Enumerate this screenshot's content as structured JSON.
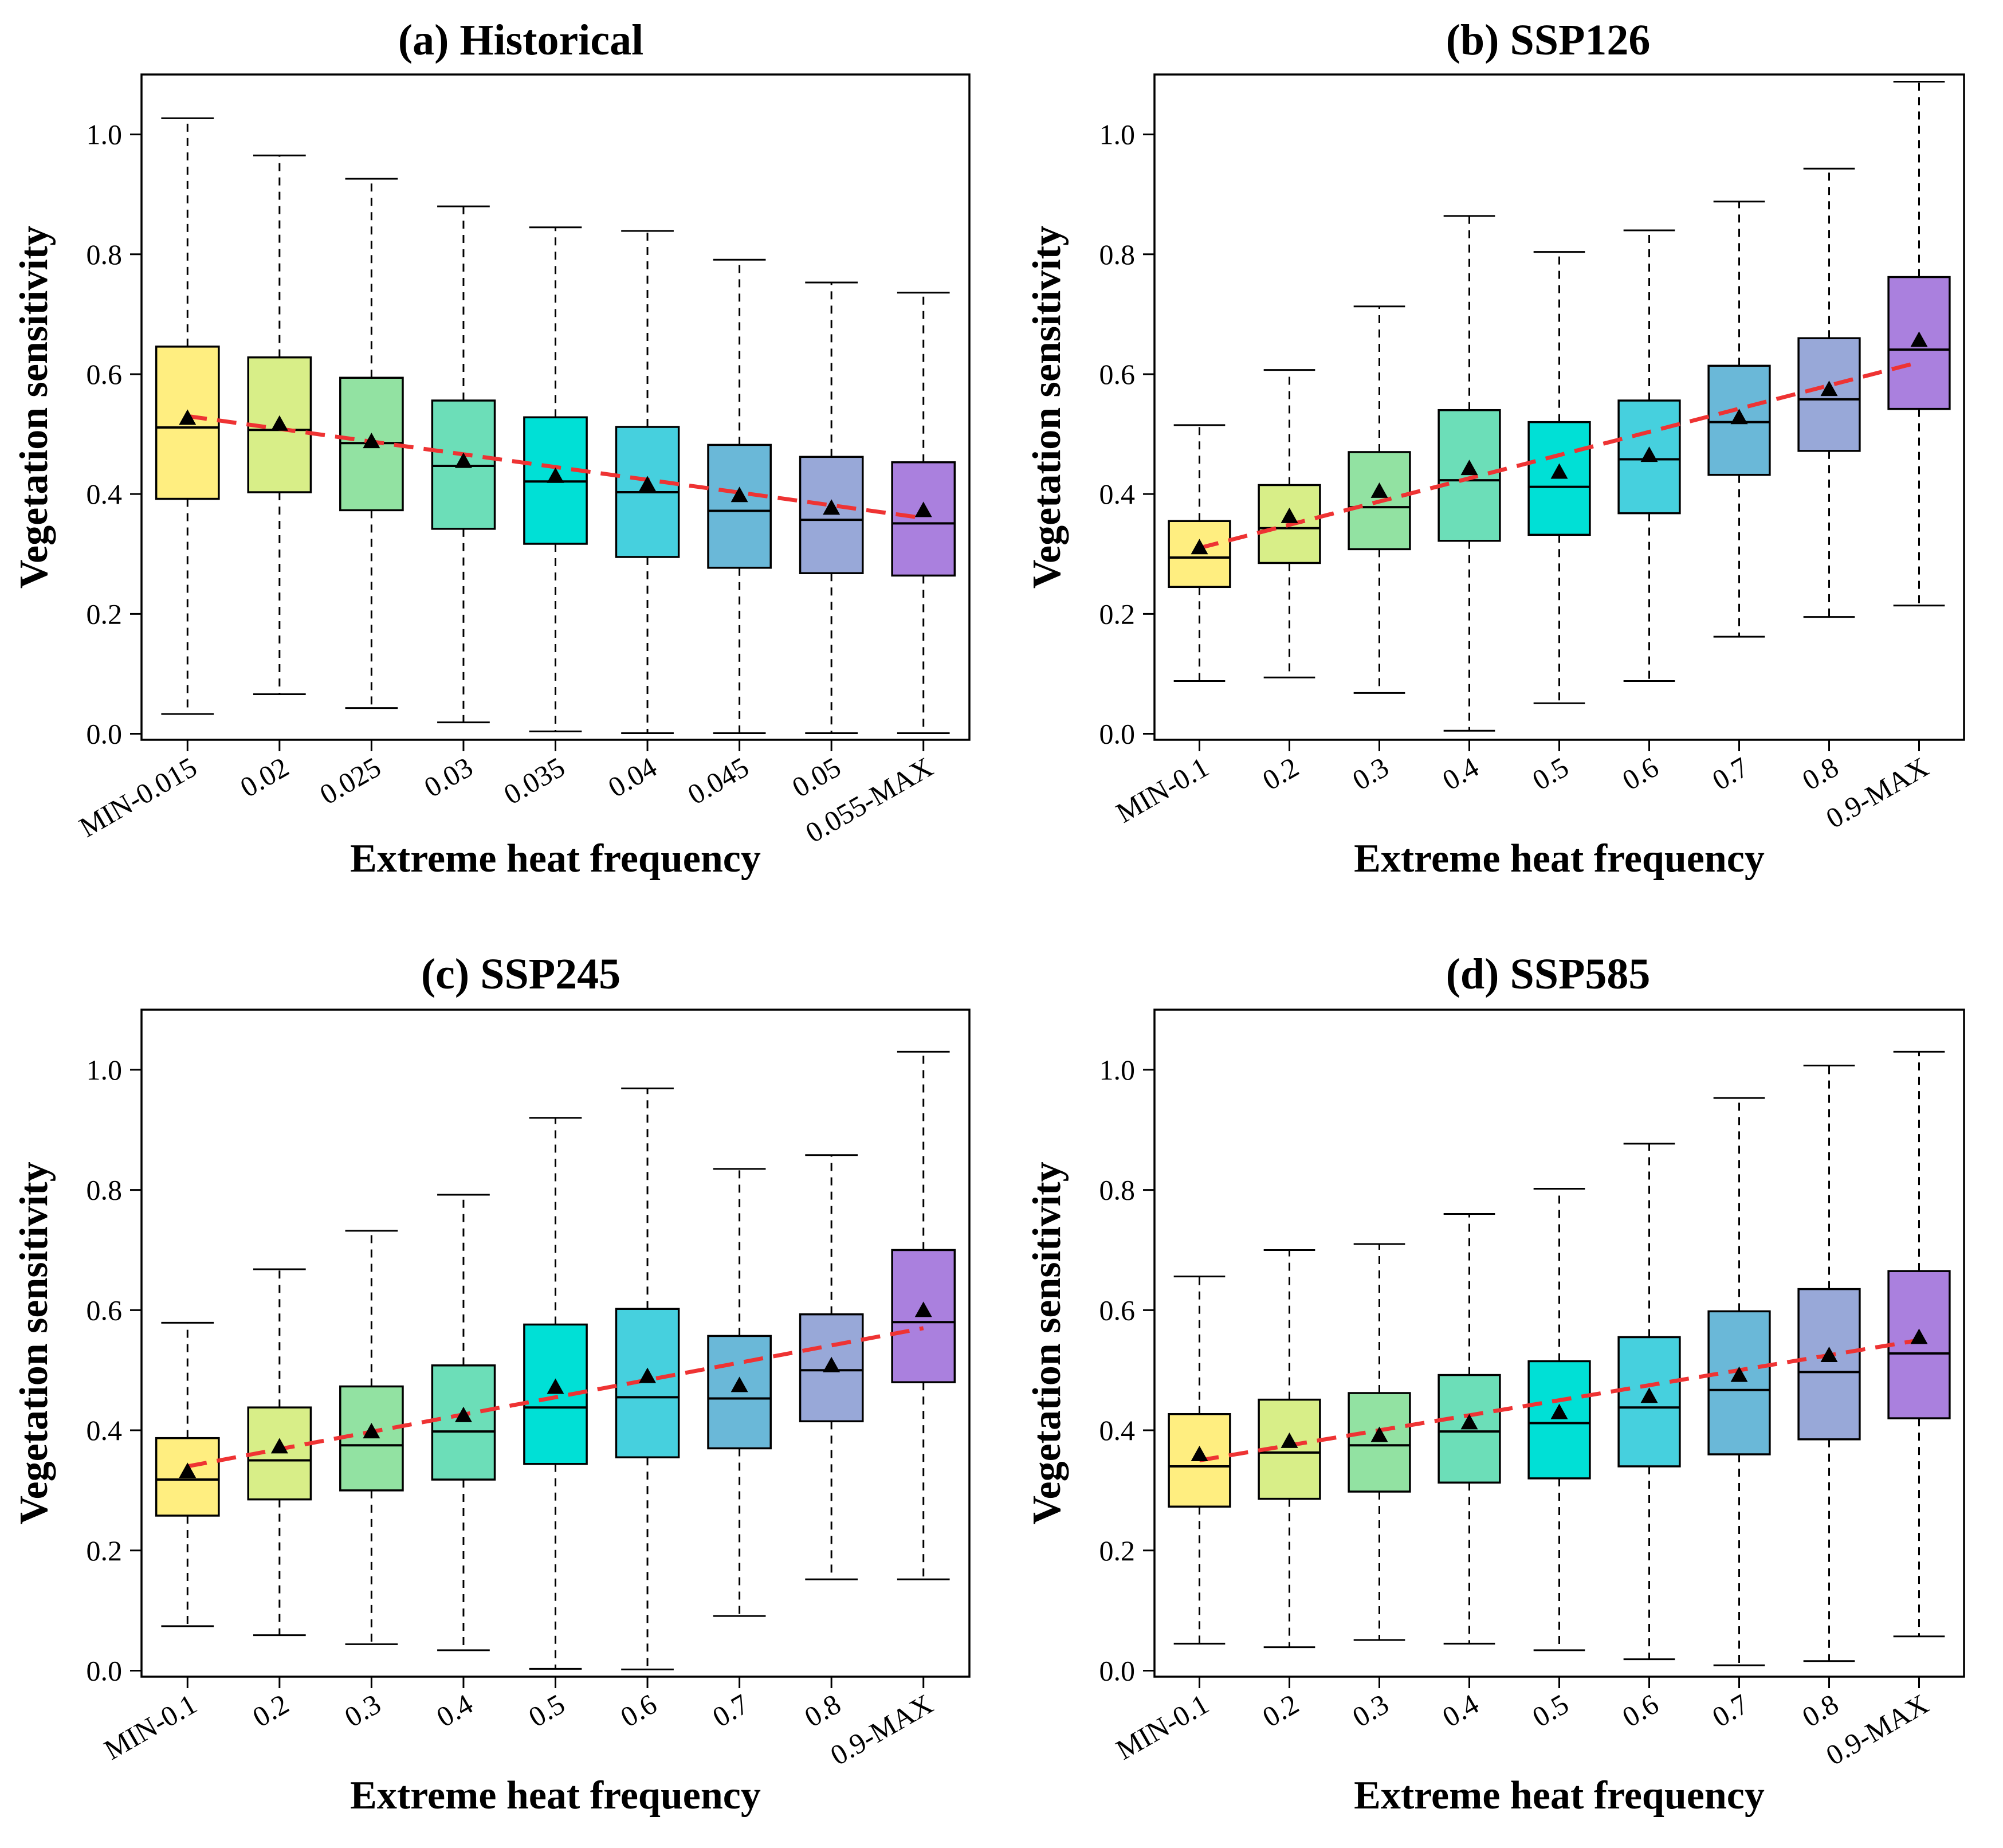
{
  "chart_data": [
    {
      "type": "box",
      "panel": "(a)",
      "title": "Historical",
      "xlabel": "Extreme heat frequency",
      "ylabel": "Vegetation sensitivity",
      "ylim": [
        -0.01,
        1.1
      ],
      "yticks": [
        "0.0",
        "0.2",
        "0.4",
        "0.6",
        "0.8",
        "1.0"
      ],
      "categories": [
        "MIN-0.015",
        "0.02",
        "0.025",
        "0.03",
        "0.035",
        "0.04",
        "0.045",
        "0.05",
        "0.055-MAX"
      ],
      "whisker_low": [
        0.033,
        0.066,
        0.043,
        0.019,
        0.004,
        0.001,
        0.001,
        0.001,
        0.001
      ],
      "q1": [
        0.392,
        0.403,
        0.373,
        0.342,
        0.317,
        0.295,
        0.277,
        0.268,
        0.264
      ],
      "median": [
        0.511,
        0.507,
        0.485,
        0.447,
        0.421,
        0.403,
        0.372,
        0.357,
        0.351
      ],
      "q3": [
        0.646,
        0.628,
        0.594,
        0.556,
        0.528,
        0.512,
        0.482,
        0.462,
        0.453
      ],
      "whisker_high": [
        1.027,
        0.965,
        0.926,
        0.88,
        0.845,
        0.839,
        0.791,
        0.753,
        0.736
      ],
      "mean": [
        0.527,
        0.517,
        0.488,
        0.455,
        0.43,
        0.416,
        0.398,
        0.377,
        0.373
      ],
      "trend": [
        0.53,
        0.36
      ]
    },
    {
      "type": "box",
      "panel": "(b)",
      "title": "SSP126",
      "xlabel": "Extreme heat frequency",
      "ylabel": "Vegetation sensitivity",
      "ylim": [
        -0.01,
        1.1
      ],
      "yticks": [
        "0.0",
        "0.2",
        "0.4",
        "0.6",
        "0.8",
        "1.0"
      ],
      "categories": [
        "MIN-0.1",
        "0.2",
        "0.3",
        "0.4",
        "0.5",
        "0.6",
        "0.7",
        "0.8",
        "0.9-MAX"
      ],
      "whisker_low": [
        0.088,
        0.094,
        0.068,
        0.005,
        0.051,
        0.088,
        0.162,
        0.195,
        0.214
      ],
      "q1": [
        0.245,
        0.285,
        0.308,
        0.322,
        0.332,
        0.368,
        0.432,
        0.472,
        0.542
      ],
      "median": [
        0.294,
        0.343,
        0.378,
        0.423,
        0.412,
        0.458,
        0.52,
        0.558,
        0.641
      ],
      "q3": [
        0.355,
        0.415,
        0.47,
        0.54,
        0.52,
        0.556,
        0.614,
        0.66,
        0.762
      ],
      "whisker_high": [
        0.515,
        0.607,
        0.713,
        0.864,
        0.804,
        0.84,
        0.888,
        0.943,
        1.088
      ],
      "mean": [
        0.311,
        0.363,
        0.405,
        0.443,
        0.437,
        0.465,
        0.528,
        0.575,
        0.657
      ],
      "trend": [
        0.31,
        0.62
      ]
    },
    {
      "type": "box",
      "panel": "(c)",
      "title": "SSP245",
      "xlabel": "Extreme heat frequency",
      "ylabel": "Vegetation sensitivity",
      "ylim": [
        -0.01,
        1.1
      ],
      "yticks": [
        "0.0",
        "0.2",
        "0.4",
        "0.6",
        "0.8",
        "1.0"
      ],
      "categories": [
        "MIN-0.1",
        "0.2",
        "0.3",
        "0.4",
        "0.5",
        "0.6",
        "0.7",
        "0.8",
        "0.9-MAX"
      ],
      "whisker_low": [
        0.074,
        0.059,
        0.044,
        0.034,
        0.003,
        0.002,
        0.091,
        0.152,
        0.152
      ],
      "q1": [
        0.258,
        0.285,
        0.3,
        0.318,
        0.344,
        0.355,
        0.37,
        0.415,
        0.48
      ],
      "median": [
        0.318,
        0.35,
        0.375,
        0.398,
        0.438,
        0.455,
        0.453,
        0.5,
        0.58
      ],
      "q3": [
        0.387,
        0.438,
        0.473,
        0.508,
        0.576,
        0.602,
        0.557,
        0.593,
        0.7
      ],
      "whisker_high": [
        0.579,
        0.668,
        0.732,
        0.792,
        0.92,
        0.969,
        0.835,
        0.858,
        1.03
      ],
      "mean": [
        0.332,
        0.373,
        0.398,
        0.425,
        0.472,
        0.49,
        0.475,
        0.508,
        0.6
      ],
      "trend": [
        0.34,
        0.57
      ]
    },
    {
      "type": "box",
      "panel": "(d)",
      "title": "SSP585",
      "xlabel": "Extreme heat frequency",
      "ylabel": "Vegetation sensitivity",
      "ylim": [
        -0.01,
        1.1
      ],
      "yticks": [
        "0.0",
        "0.2",
        "0.4",
        "0.6",
        "0.8",
        "1.0"
      ],
      "categories": [
        "MIN-0.1",
        "0.2",
        "0.3",
        "0.4",
        "0.5",
        "0.6",
        "0.7",
        "0.8",
        "0.9-MAX"
      ],
      "whisker_low": [
        0.045,
        0.039,
        0.051,
        0.045,
        0.034,
        0.019,
        0.009,
        0.016,
        0.057
      ],
      "q1": [
        0.273,
        0.286,
        0.298,
        0.313,
        0.32,
        0.34,
        0.36,
        0.385,
        0.42
      ],
      "median": [
        0.34,
        0.363,
        0.375,
        0.398,
        0.412,
        0.438,
        0.467,
        0.497,
        0.528
      ],
      "q3": [
        0.427,
        0.451,
        0.462,
        0.492,
        0.515,
        0.555,
        0.598,
        0.635,
        0.665
      ],
      "whisker_high": [
        0.656,
        0.7,
        0.71,
        0.76,
        0.802,
        0.877,
        0.953,
        1.007,
        1.03
      ],
      "mean": [
        0.36,
        0.382,
        0.392,
        0.413,
        0.43,
        0.457,
        0.492,
        0.525,
        0.555
      ],
      "trend": [
        0.35,
        0.55
      ]
    }
  ],
  "colors": {
    "boxes": [
      "#FFEE80",
      "#D8EE88",
      "#92E2A2",
      "#6CDEB8",
      "#00E0D6",
      "#46D0DE",
      "#6AB8D8",
      "#98A8D8",
      "#AA80DE"
    ],
    "trend": "#EE3333",
    "mean_marker": "#000000"
  }
}
